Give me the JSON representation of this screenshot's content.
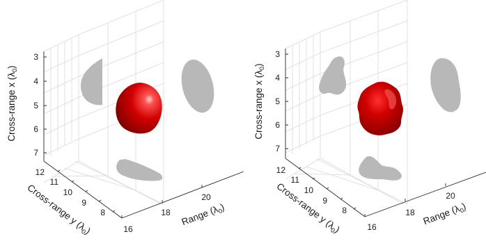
{
  "chart_data": [
    {
      "type": "3d-isosurface",
      "panel": "left",
      "axes": {
        "x": {
          "label": "Cross-range x",
          "unit": "λ",
          "unit_sub": "0",
          "ticks": [
            "3",
            "4",
            "5",
            "6",
            "7"
          ]
        },
        "y": {
          "label": "Cross-range y",
          "unit": "λ",
          "unit_sub": "0",
          "ticks": [
            "12",
            "11",
            "10",
            "9",
            "8"
          ]
        },
        "z": {
          "label": "Range",
          "unit": "λ",
          "unit_sub": "0",
          "ticks": [
            "16",
            "18",
            "20"
          ]
        }
      },
      "object": {
        "shape": "smooth sphere",
        "color": "#cc0000"
      },
      "projections": {
        "color": "#b8b8b8"
      },
      "grid": true
    },
    {
      "type": "3d-isosurface",
      "panel": "right",
      "axes": {
        "x": {
          "label": "Cross-range x",
          "unit": "λ",
          "unit_sub": "0",
          "ticks": [
            "3",
            "4",
            "5",
            "6",
            "7"
          ]
        },
        "y": {
          "label": "Cross-range y",
          "unit": "λ",
          "unit_sub": "0",
          "ticks": [
            "12",
            "11",
            "10",
            "9",
            "8"
          ]
        },
        "z": {
          "label": "Range",
          "unit": "λ",
          "unit_sub": "0",
          "ticks": [
            "16",
            "18",
            "20"
          ]
        }
      },
      "object": {
        "shape": "irregular reconstruction",
        "color": "#cc0000"
      },
      "projections": {
        "color": "#b8b8b8"
      },
      "grid": true
    }
  ]
}
